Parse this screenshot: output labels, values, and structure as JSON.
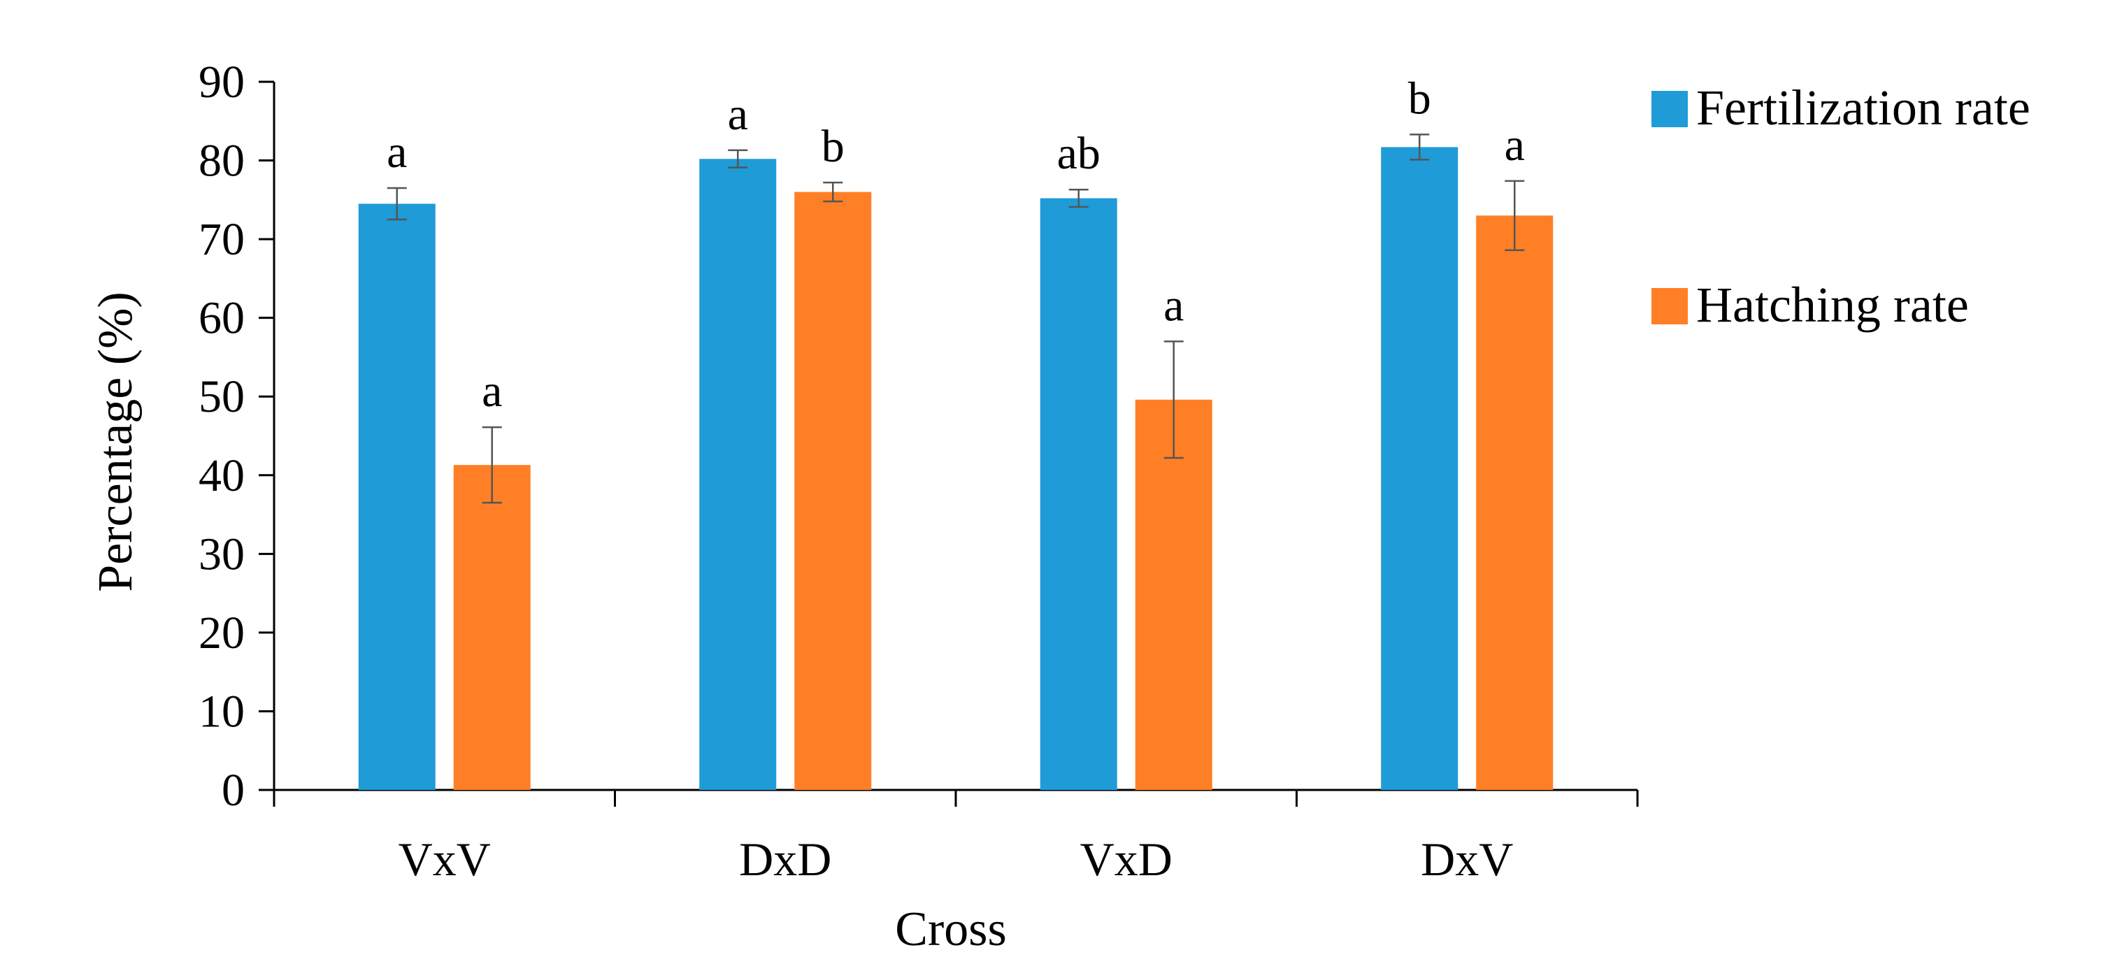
{
  "chart_data": {
    "type": "bar",
    "title": "",
    "xlabel": "Cross",
    "ylabel": "Percentage (%)",
    "ylim": [
      0,
      90
    ],
    "yticks": [
      "0",
      "10",
      "20",
      "30",
      "40",
      "50",
      "60",
      "70",
      "80",
      "90"
    ],
    "categories": [
      "VxV",
      "DxD",
      "VxD",
      "DxV"
    ],
    "grid": false,
    "legend_position": "right",
    "series": [
      {
        "name": "Fertilization rate",
        "color": "#1F9BD7",
        "values": [
          74.5,
          80.2,
          75.2,
          81.7
        ],
        "errors": [
          2.0,
          1.1,
          1.1,
          1.6
        ],
        "labels": [
          "a",
          "a",
          "ab",
          "b"
        ]
      },
      {
        "name": "Hatching rate",
        "color": "#FF7F27",
        "values": [
          41.3,
          76.0,
          49.6,
          73.0
        ],
        "errors": [
          4.8,
          1.2,
          7.4,
          4.4
        ],
        "labels": [
          "a",
          "b",
          "a",
          "a"
        ]
      }
    ]
  }
}
